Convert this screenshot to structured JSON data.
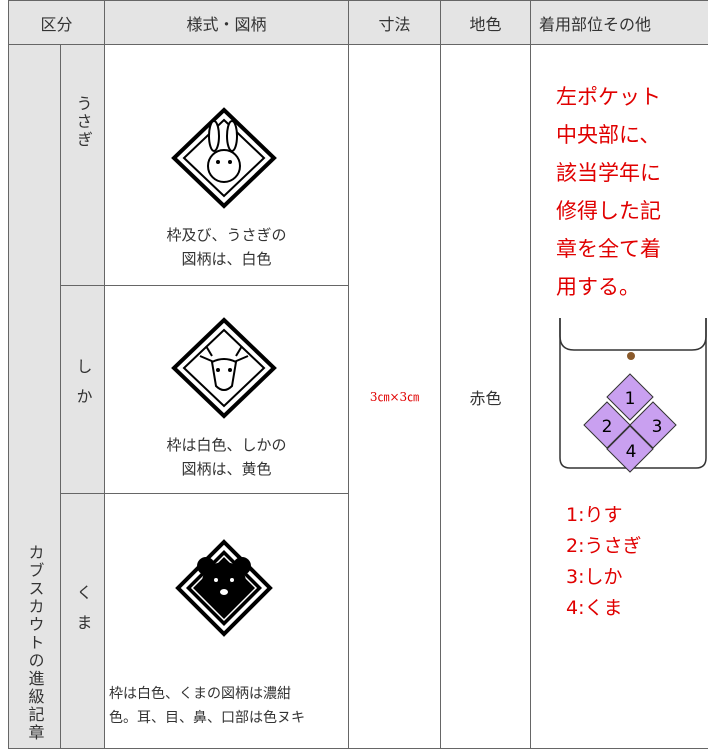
{
  "header": {
    "cells": [
      "区分",
      "様式・図柄",
      "寸法",
      "地色",
      "着用部位その他"
    ]
  },
  "group": "カブスカウトの進級記章",
  "rows": [
    {
      "name": "うさぎ",
      "description": [
        "枠及び、うさぎの",
        "図柄は、白色"
      ]
    },
    {
      "name": "しか",
      "description": [
        "枠は白色、しかの",
        "図柄は、黄色"
      ]
    },
    {
      "name": "くま",
      "description": [
        "枠は白色、くまの図柄は濃紺",
        "色。耳、目、鼻、口部は色ヌキ"
      ]
    }
  ],
  "size": "3㎝×3㎝",
  "ground_color": "赤色",
  "wearing": {
    "text": [
      "左ポケット",
      "中央部に、",
      "該当学年に",
      "修得した記",
      "章を全て着",
      "用する。"
    ],
    "diagram": [
      "1",
      "2",
      "3",
      "4"
    ],
    "legend": [
      "1:りす",
      "2:うさぎ",
      "3:しか",
      "4:くま"
    ]
  }
}
